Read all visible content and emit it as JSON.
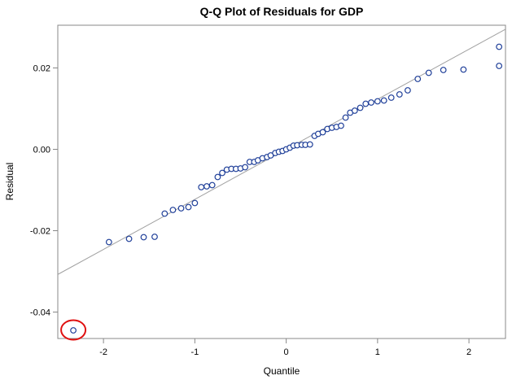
{
  "chart_data": {
    "type": "scatter",
    "title": "Q-Q Plot of Residuals for GDP",
    "xlabel": "Quantile",
    "ylabel": "Residual",
    "xlim": [
      -2.5,
      2.4
    ],
    "ylim": [
      -0.0465,
      0.0305
    ],
    "x_ticks": [
      {
        "value": -2,
        "label": "-2"
      },
      {
        "value": -1,
        "label": "-1"
      },
      {
        "value": 0,
        "label": "0"
      },
      {
        "value": 1,
        "label": "1"
      },
      {
        "value": 2,
        "label": "2"
      }
    ],
    "y_ticks": [
      {
        "value": -0.04,
        "label": "-0.04"
      },
      {
        "value": -0.02,
        "label": "-0.02"
      },
      {
        "value": 0.0,
        "label": "0.00"
      },
      {
        "value": 0.02,
        "label": "0.02"
      }
    ],
    "grid": false,
    "reference_line": {
      "intercept": 0.0,
      "slope": 0.0123,
      "color": "#a0a0a0"
    },
    "marker_color": "#1f3f99",
    "annotation": {
      "type": "circle",
      "color": "#e01010",
      "around_point": {
        "x": -2.33,
        "y": -0.0445
      }
    },
    "points": [
      {
        "x": -2.33,
        "y": -0.0445
      },
      {
        "x": -1.94,
        "y": -0.0228
      },
      {
        "x": -1.72,
        "y": -0.022
      },
      {
        "x": -1.56,
        "y": -0.0216
      },
      {
        "x": -1.44,
        "y": -0.0215
      },
      {
        "x": -1.33,
        "y": -0.0158
      },
      {
        "x": -1.24,
        "y": -0.0149
      },
      {
        "x": -1.15,
        "y": -0.0145
      },
      {
        "x": -1.07,
        "y": -0.0142
      },
      {
        "x": -1.0,
        "y": -0.0132
      },
      {
        "x": -0.93,
        "y": -0.0093
      },
      {
        "x": -0.87,
        "y": -0.0091
      },
      {
        "x": -0.81,
        "y": -0.0088
      },
      {
        "x": -0.75,
        "y": -0.0068
      },
      {
        "x": -0.7,
        "y": -0.0058
      },
      {
        "x": -0.65,
        "y": -0.005
      },
      {
        "x": -0.6,
        "y": -0.0048
      },
      {
        "x": -0.55,
        "y": -0.0048
      },
      {
        "x": -0.5,
        "y": -0.0047
      },
      {
        "x": -0.45,
        "y": -0.0044
      },
      {
        "x": -0.4,
        "y": -0.0031
      },
      {
        "x": -0.35,
        "y": -0.0031
      },
      {
        "x": -0.31,
        "y": -0.0027
      },
      {
        "x": -0.26,
        "y": -0.0022
      },
      {
        "x": -0.21,
        "y": -0.0019
      },
      {
        "x": -0.17,
        "y": -0.0015
      },
      {
        "x": -0.12,
        "y": -0.0009
      },
      {
        "x": -0.08,
        "y": -0.0006
      },
      {
        "x": -0.04,
        "y": -0.0004
      },
      {
        "x": 0.0,
        "y": 0.0
      },
      {
        "x": 0.04,
        "y": 0.0004
      },
      {
        "x": 0.08,
        "y": 0.0009
      },
      {
        "x": 0.12,
        "y": 0.001
      },
      {
        "x": 0.17,
        "y": 0.0011
      },
      {
        "x": 0.21,
        "y": 0.0011
      },
      {
        "x": 0.26,
        "y": 0.0012
      },
      {
        "x": 0.31,
        "y": 0.0033
      },
      {
        "x": 0.35,
        "y": 0.0038
      },
      {
        "x": 0.4,
        "y": 0.0042
      },
      {
        "x": 0.45,
        "y": 0.005
      },
      {
        "x": 0.5,
        "y": 0.0053
      },
      {
        "x": 0.55,
        "y": 0.0055
      },
      {
        "x": 0.6,
        "y": 0.0058
      },
      {
        "x": 0.65,
        "y": 0.0078
      },
      {
        "x": 0.7,
        "y": 0.009
      },
      {
        "x": 0.75,
        "y": 0.0095
      },
      {
        "x": 0.81,
        "y": 0.0102
      },
      {
        "x": 0.87,
        "y": 0.0112
      },
      {
        "x": 0.93,
        "y": 0.0115
      },
      {
        "x": 1.0,
        "y": 0.0118
      },
      {
        "x": 1.07,
        "y": 0.012
      },
      {
        "x": 1.15,
        "y": 0.0127
      },
      {
        "x": 1.24,
        "y": 0.0135
      },
      {
        "x": 1.33,
        "y": 0.0145
      },
      {
        "x": 1.44,
        "y": 0.0173
      },
      {
        "x": 1.56,
        "y": 0.0188
      },
      {
        "x": 1.72,
        "y": 0.0195
      },
      {
        "x": 1.94,
        "y": 0.0196
      },
      {
        "x": 2.33,
        "y": 0.0205
      },
      {
        "x": 2.33,
        "y": 0.0252
      }
    ]
  }
}
